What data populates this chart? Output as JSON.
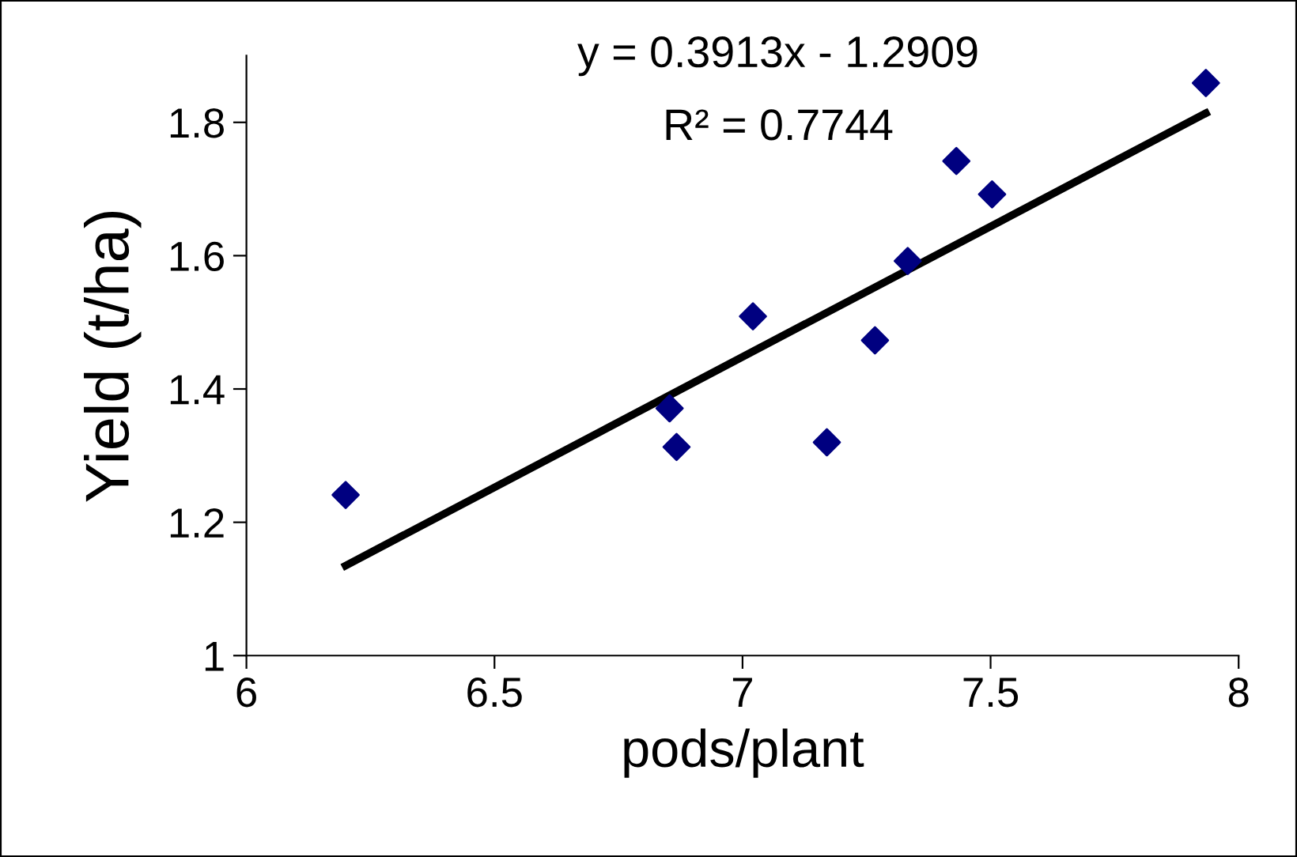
{
  "chart_data": {
    "type": "scatter",
    "xlabel": "pods/plant",
    "ylabel": "Yield (t/ha)",
    "annotations": [
      "y = 0.3913x - 1.2909",
      "R² = 0.7744"
    ],
    "x": [
      6.2,
      6.853,
      6.867,
      7.021,
      7.17,
      7.267,
      7.333,
      7.431,
      7.503,
      7.934
    ],
    "series": [
      {
        "color": "#000080",
        "values": [
          1.241,
          1.371,
          1.313,
          1.509,
          1.32,
          1.473,
          1.592,
          1.742,
          1.692,
          1.859
        ],
        "marker": "diamond"
      },
      {
        "type": "line",
        "color": "#000000",
        "x": [
          6.2,
          7.934
        ],
        "values": [
          1.135,
          1.8137
        ],
        "marker": "none"
      }
    ],
    "xlim": [
      6,
      8
    ],
    "ylim": [
      1,
      1.9
    ],
    "xticks": [
      6,
      6.5,
      7,
      7.5,
      8
    ],
    "yticks": [
      1,
      1.2,
      1.4,
      1.6,
      1.8
    ],
    "grid": false,
    "legend": false
  }
}
